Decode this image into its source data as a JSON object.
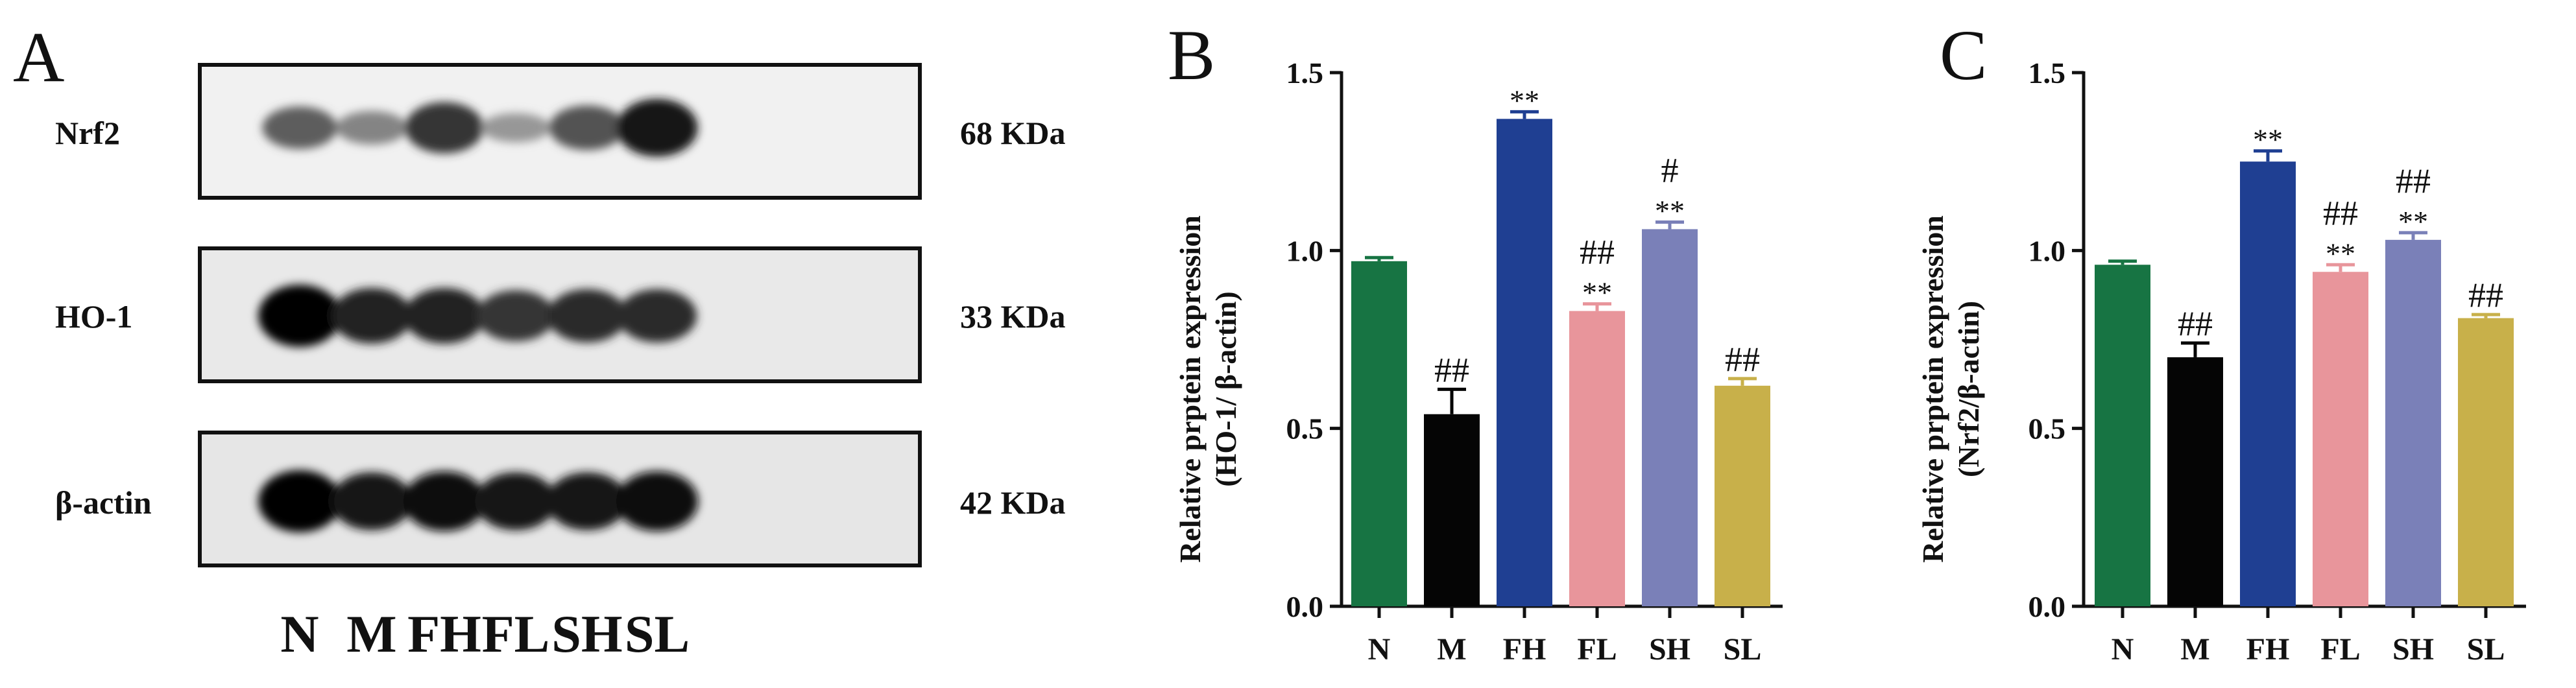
{
  "panel_a": {
    "letter": "A",
    "rows": [
      {
        "protein": "Nrf2",
        "kda": "68 KDa",
        "intensity": [
          0.55,
          0.35,
          0.75,
          0.25,
          0.6,
          0.9
        ]
      },
      {
        "protein": "HO-1",
        "kda": "33 KDa",
        "intensity": [
          1.0,
          0.85,
          0.85,
          0.75,
          0.8,
          0.8
        ]
      },
      {
        "protein": "β-actin",
        "kda": "42 KDa",
        "intensity": [
          1.0,
          0.9,
          0.95,
          0.9,
          0.9,
          0.95
        ]
      }
    ],
    "lanes": [
      "N",
      "M",
      "FH",
      "FL",
      "SH",
      "SL"
    ]
  },
  "colors": {
    "N": "#177443",
    "M": "#050505",
    "FH": "#1f3f92",
    "FL": "#e8959b",
    "SH": "#7a80b8",
    "SL": "#c8b04a"
  },
  "chart_data": [
    {
      "type": "bar",
      "panel": "B",
      "categories": [
        "N",
        "M",
        "FH",
        "FL",
        "SH",
        "SL"
      ],
      "values": [
        0.97,
        0.54,
        1.37,
        0.83,
        1.06,
        0.62
      ],
      "errors": [
        0.01,
        0.07,
        0.02,
        0.02,
        0.02,
        0.02
      ],
      "annotations": [
        [],
        [
          "##"
        ],
        [
          "**"
        ],
        [
          "**",
          "##"
        ],
        [
          "**",
          "#"
        ],
        [
          "##"
        ]
      ],
      "ylabel": "Relative prptein expression",
      "ylabel2": "(HO-1/ β-actin)",
      "yticks": [
        "0.0",
        "0.5",
        "1.0",
        "1.5"
      ],
      "ylim": [
        0,
        1.5
      ]
    },
    {
      "type": "bar",
      "panel": "C",
      "categories": [
        "N",
        "M",
        "FH",
        "FL",
        "SH",
        "SL"
      ],
      "values": [
        0.96,
        0.7,
        1.25,
        0.94,
        1.03,
        0.81
      ],
      "errors": [
        0.01,
        0.04,
        0.03,
        0.02,
        0.02,
        0.01
      ],
      "annotations": [
        [],
        [
          "##"
        ],
        [
          "**"
        ],
        [
          "**",
          "##"
        ],
        [
          "**",
          "##"
        ],
        [
          "##"
        ]
      ],
      "ylabel": "Relative prptein expression",
      "ylabel2": "(Nrf2/β-actin)",
      "yticks": [
        "0.0",
        "0.5",
        "1.0",
        "1.5"
      ],
      "ylim": [
        0,
        1.5
      ]
    }
  ]
}
